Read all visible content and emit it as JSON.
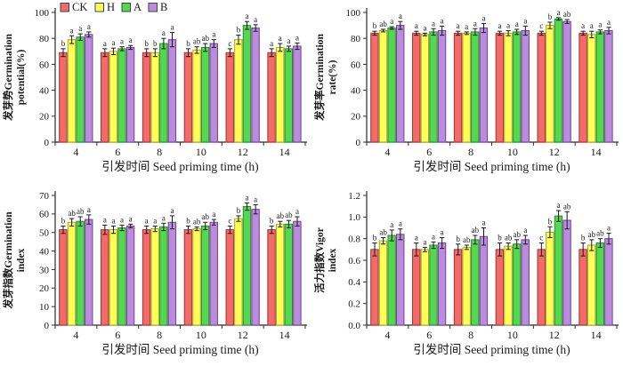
{
  "figure": {
    "background": "#ffffff",
    "axis_color": "#2b2b2b",
    "error_bar_color": "#1a1a1a",
    "sig_letter_color": "#1a1a1a"
  },
  "legend": {
    "show_on_chart_index": 0,
    "items": [
      {
        "label": "CK",
        "fill": "#f26a6a",
        "stroke": "#a03430"
      },
      {
        "label": "H",
        "fill": "#ffff55",
        "stroke": "#a6a632"
      },
      {
        "label": "A",
        "fill": "#55d84f",
        "stroke": "#2b8a2b"
      },
      {
        "label": "B",
        "fill": "#bb8cdb",
        "stroke": "#7040a0"
      }
    ]
  },
  "chart_data": [
    {
      "type": "bar",
      "title": "",
      "ylabel_lines": [
        "发芽势Germination",
        "potential(%)"
      ],
      "xlabel": "引发时间 Seed priming time (h)",
      "categories": [
        "4",
        "6",
        "8",
        "10",
        "12",
        "14"
      ],
      "ylim": [
        0,
        100
      ],
      "ytick_step": 20,
      "ytick_decimals": 0,
      "grid": false,
      "series": [
        {
          "name": "CK",
          "fill": "#f26a6a",
          "stroke": "#a03430",
          "values": [
            69,
            69,
            69,
            69,
            69,
            69
          ],
          "errors": [
            3,
            3,
            3,
            3,
            3,
            3
          ],
          "sig_letters": [
            "b",
            "a",
            "b",
            "b",
            "c",
            "a"
          ]
        },
        {
          "name": "H",
          "fill": "#ffff55",
          "stroke": "#a6a632",
          "values": [
            79,
            70,
            69,
            71,
            79,
            73
          ],
          "errors": [
            3,
            2.5,
            3,
            2.5,
            3.5,
            3
          ],
          "sig_letters": [
            "a",
            "a",
            "b",
            "ab",
            "b",
            "a"
          ]
        },
        {
          "name": "A",
          "fill": "#55d84f",
          "stroke": "#2b8a2b",
          "values": [
            81,
            72,
            76,
            73,
            90,
            72
          ],
          "errors": [
            2.5,
            1.5,
            4,
            3,
            3,
            2
          ],
          "sig_letters": [
            "a",
            "a",
            "a",
            "ab",
            "a",
            "a"
          ]
        },
        {
          "name": "B",
          "fill": "#bb8cdb",
          "stroke": "#7040a0",
          "values": [
            83,
            73,
            79,
            76,
            88,
            74
          ],
          "errors": [
            2,
            1.5,
            5.5,
            3,
            2.5,
            2.5
          ],
          "sig_letters": [
            "a",
            "a",
            "a",
            "a",
            "a",
            "a"
          ]
        }
      ]
    },
    {
      "type": "bar",
      "title": "",
      "ylabel_lines": [
        "发芽率Germination",
        "rate(%)"
      ],
      "xlabel": "引发时间 Seed priming time (h)",
      "categories": [
        "4",
        "6",
        "8",
        "10",
        "12",
        "14"
      ],
      "ylim": [
        0,
        100
      ],
      "ytick_step": 20,
      "ytick_decimals": 0,
      "grid": false,
      "series": [
        {
          "name": "CK",
          "fill": "#f26a6a",
          "stroke": "#a03430",
          "values": [
            84,
            84,
            84,
            84,
            84,
            84
          ],
          "errors": [
            1.5,
            1.5,
            1.5,
            1.5,
            1.5,
            1.5
          ],
          "sig_letters": [
            "b",
            "a",
            "a",
            "a",
            "c",
            "a"
          ]
        },
        {
          "name": "H",
          "fill": "#ffff55",
          "stroke": "#a6a632",
          "values": [
            86,
            83,
            84,
            84,
            90,
            83
          ],
          "errors": [
            1,
            1,
            1,
            2,
            2.5,
            2.5
          ],
          "sig_letters": [
            "ab",
            "a",
            "a",
            "a",
            "b",
            "a"
          ]
        },
        {
          "name": "A",
          "fill": "#55d84f",
          "stroke": "#2b8a2b",
          "values": [
            88,
            85,
            85,
            85,
            95,
            85
          ],
          "errors": [
            1,
            2.5,
            2.5,
            2,
            1,
            1.5
          ],
          "sig_letters": [
            "a",
            "a",
            "a",
            "a",
            "a",
            "a"
          ]
        },
        {
          "name": "B",
          "fill": "#bb8cdb",
          "stroke": "#7040a0",
          "values": [
            90,
            86,
            88,
            86,
            93,
            86
          ],
          "errors": [
            3,
            3.5,
            3.5,
            3.5,
            1.5,
            2.5
          ],
          "sig_letters": [
            "a",
            "a",
            "a",
            "a",
            "ab",
            "a"
          ]
        }
      ]
    },
    {
      "type": "bar",
      "title": "",
      "ylabel_lines": [
        "发芽指数Germination",
        "index"
      ],
      "xlabel": "引发时间 Seed priming time (h)",
      "categories": [
        "4",
        "6",
        "8",
        "10",
        "12",
        "14"
      ],
      "ylim": [
        0,
        70
      ],
      "ytick_step": 10,
      "ytick_decimals": 0,
      "grid": false,
      "series": [
        {
          "name": "CK",
          "fill": "#f26a6a",
          "stroke": "#a03430",
          "values": [
            51.5,
            51.5,
            51.5,
            51.5,
            51.5,
            51.5
          ],
          "errors": [
            2,
            2.5,
            2,
            2,
            2,
            2
          ],
          "sig_letters": [
            "b",
            "a",
            "a",
            "b",
            "c",
            "b"
          ]
        },
        {
          "name": "H",
          "fill": "#ffff55",
          "stroke": "#a6a632",
          "values": [
            55.5,
            51.5,
            52,
            52,
            57.5,
            54.5
          ],
          "errors": [
            2,
            2,
            1.5,
            1,
            1.5,
            1.5
          ],
          "sig_letters": [
            "ab",
            "a",
            "a",
            "ab",
            "b",
            "ab"
          ]
        },
        {
          "name": "A",
          "fill": "#55d84f",
          "stroke": "#2b8a2b",
          "values": [
            56,
            52.5,
            53,
            53.5,
            64,
            54.5
          ],
          "errors": [
            2.5,
            1.5,
            2,
            2,
            2,
            2
          ],
          "sig_letters": [
            "ab",
            "a",
            "a",
            "ab",
            "a",
            "ab"
          ]
        },
        {
          "name": "B",
          "fill": "#bb8cdb",
          "stroke": "#7040a0",
          "values": [
            57,
            53.5,
            55.5,
            55.5,
            62.5,
            56
          ],
          "errors": [
            2.5,
            1,
            3.5,
            1.5,
            2.5,
            2.5
          ],
          "sig_letters": [
            "a",
            "a",
            "a",
            "a",
            "a",
            "a"
          ]
        }
      ]
    },
    {
      "type": "bar",
      "title": "",
      "ylabel_lines": [
        "活力指数Vigor",
        "index"
      ],
      "xlabel": "引发时间 Seed priming time (h)",
      "categories": [
        "4",
        "6",
        "8",
        "10",
        "12",
        "14"
      ],
      "ylim": [
        0,
        1.2
      ],
      "ytick_step": 0.2,
      "ytick_decimals": 1,
      "grid": false,
      "series": [
        {
          "name": "CK",
          "fill": "#f26a6a",
          "stroke": "#a03430",
          "values": [
            0.7,
            0.7,
            0.7,
            0.7,
            0.7,
            0.7
          ],
          "errors": [
            0.06,
            0.06,
            0.05,
            0.06,
            0.06,
            0.06
          ],
          "sig_letters": [
            "b",
            "a",
            "b",
            "b",
            "c",
            "b"
          ]
        },
        {
          "name": "H",
          "fill": "#ffff55",
          "stroke": "#a6a632",
          "values": [
            0.78,
            0.7,
            0.72,
            0.73,
            0.86,
            0.74
          ],
          "errors": [
            0.03,
            0.02,
            0.02,
            0.03,
            0.05,
            0.05
          ],
          "sig_letters": [
            "ab",
            "a",
            "ab",
            "ab",
            "b",
            "ab"
          ]
        },
        {
          "name": "A",
          "fill": "#55d84f",
          "stroke": "#2b8a2b",
          "values": [
            0.83,
            0.74,
            0.79,
            0.75,
            1.01,
            0.76
          ],
          "errors": [
            0.05,
            0.03,
            0.04,
            0.04,
            0.05,
            0.04
          ],
          "sig_letters": [
            "a",
            "a",
            "ab",
            "ab",
            "a",
            "ab"
          ]
        },
        {
          "name": "B",
          "fill": "#bb8cdb",
          "stroke": "#7040a0",
          "values": [
            0.84,
            0.76,
            0.82,
            0.79,
            0.97,
            0.8
          ],
          "errors": [
            0.05,
            0.05,
            0.08,
            0.04,
            0.08,
            0.05
          ],
          "sig_letters": [
            "a",
            "a",
            "a",
            "a",
            "ab",
            "a"
          ]
        }
      ]
    }
  ]
}
